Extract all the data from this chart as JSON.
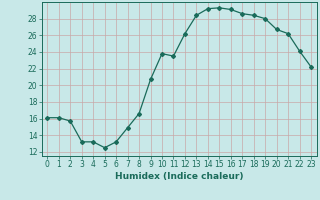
{
  "x": [
    0,
    1,
    2,
    3,
    4,
    5,
    6,
    7,
    8,
    9,
    10,
    11,
    12,
    13,
    14,
    15,
    16,
    17,
    18,
    19,
    20,
    21,
    22,
    23
  ],
  "y": [
    16.1,
    16.1,
    15.7,
    13.2,
    13.2,
    12.5,
    13.2,
    14.9,
    16.6,
    20.7,
    23.8,
    23.5,
    26.2,
    28.4,
    29.2,
    29.3,
    29.1,
    28.6,
    28.4,
    28.0,
    26.7,
    26.2,
    24.1,
    22.2
  ],
  "line_color": "#1a6b5a",
  "marker": "D",
  "marker_size": 2.0,
  "bg_color": "#c8e8e8",
  "grid_color": "#c8a8a8",
  "xlabel": "Humidex (Indice chaleur)",
  "xlim": [
    -0.5,
    23.5
  ],
  "ylim": [
    11.5,
    30.0
  ],
  "yticks": [
    12,
    14,
    16,
    18,
    20,
    22,
    24,
    26,
    28
  ],
  "xticks": [
    0,
    1,
    2,
    3,
    4,
    5,
    6,
    7,
    8,
    9,
    10,
    11,
    12,
    13,
    14,
    15,
    16,
    17,
    18,
    19,
    20,
    21,
    22,
    23
  ],
  "tick_color": "#1a6b5a",
  "tick_label_size": 5.5,
  "xlabel_size": 6.5,
  "linewidth": 0.9
}
